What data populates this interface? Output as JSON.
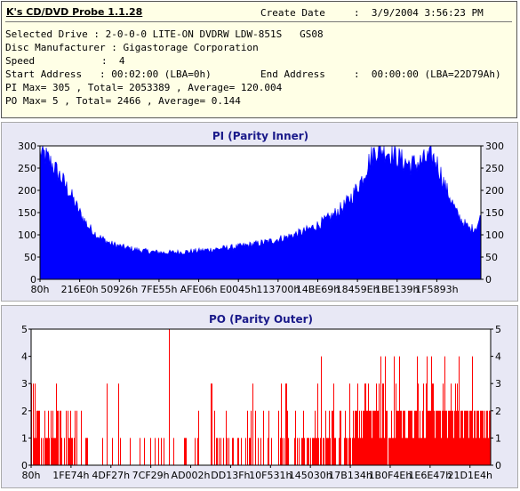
{
  "header": {
    "app_title": "K's CD/DVD Probe 1.1.28",
    "create_date_label": "Create Date",
    "create_date_value": ":  3/9/2004 3:56:23 PM",
    "selected_drive": "Selected Drive : 2-0-0-0 LITE-ON DVDRW LDW-851S   GS08",
    "disc_manufacturer": "Disc Manufacturer : Gigastorage Corporation",
    "speed_label": "Speed",
    "speed_value": ":  4",
    "start_address": "Start Address   : 00:02:00 (LBA=0h)",
    "end_address_label": "End Address",
    "end_address_value": ":  00:00:00 (LBA=22D79Ah)",
    "pi_summary": "PI Max= 305 , Total= 2053389 , Average= 120.004",
    "po_summary": "PO Max= 5 , Total= 2466 , Average= 0.144"
  },
  "chart_data": [
    {
      "type": "area",
      "title": "PI (Parity Inner)",
      "color": "#0000ff",
      "ylim": [
        0,
        300
      ],
      "yticks": [
        0,
        50,
        100,
        150,
        200,
        250,
        300
      ],
      "xticks": [
        "80h",
        "216E0h",
        "50926h",
        "7FE55h",
        "AFE06h",
        "E0045h",
        "113700h",
        "14BE69h",
        "18459Eh",
        "1BE139h",
        "1F5893h"
      ],
      "grid": false,
      "series": [
        {
          "profile_x": [
            0,
            0.01,
            0.03,
            0.05,
            0.07,
            0.09,
            0.11,
            0.13,
            0.16,
            0.19,
            0.22,
            0.25,
            0.28,
            0.32,
            0.36,
            0.4,
            0.44,
            0.48,
            0.52,
            0.56,
            0.6,
            0.63,
            0.66,
            0.69,
            0.71,
            0.73,
            0.745,
            0.76,
            0.78,
            0.8,
            0.82,
            0.84,
            0.86,
            0.88,
            0.89,
            0.9,
            0.91,
            0.92,
            0.93,
            0.945,
            0.96,
            0.975,
            0.99,
            1.0
          ],
          "profile_y": [
            285,
            280,
            255,
            225,
            190,
            150,
            118,
            98,
            80,
            72,
            66,
            62,
            60,
            61,
            64,
            68,
            72,
            78,
            85,
            95,
            108,
            122,
            140,
            165,
            190,
            225,
            262,
            290,
            292,
            282,
            268,
            258,
            262,
            272,
            275,
            262,
            235,
            205,
            185,
            148,
            128,
            112,
            118,
            140
          ]
        }
      ]
    },
    {
      "type": "bar",
      "title": "PO (Parity Outer)",
      "color": "#ff0000",
      "ylim": [
        0,
        5
      ],
      "yticks": [
        0,
        1,
        2,
        3,
        4,
        5
      ],
      "xticks": [
        "80h",
        "1FE74h",
        "4DF27h",
        "7CF29h",
        "AD002h",
        "DD13Fh",
        "10F531h",
        "145030h",
        "17B134h",
        "1B0F4Eh",
        "1E6E47h",
        "21D1E4h"
      ],
      "grid": false,
      "series": [
        {
          "peaks": [
            {
              "x": 0.3,
              "v": 5
            },
            {
              "x": 0.63,
              "v": 4
            },
            {
              "x": 0.76,
              "v": 4
            },
            {
              "x": 0.77,
              "v": 4
            },
            {
              "x": 0.79,
              "v": 4
            },
            {
              "x": 0.8,
              "v": 4
            },
            {
              "x": 0.84,
              "v": 4
            },
            {
              "x": 0.86,
              "v": 4
            },
            {
              "x": 0.87,
              "v": 4
            },
            {
              "x": 0.9,
              "v": 4
            },
            {
              "x": 0.93,
              "v": 4
            },
            {
              "x": 0.96,
              "v": 4
            }
          ]
        }
      ]
    }
  ]
}
